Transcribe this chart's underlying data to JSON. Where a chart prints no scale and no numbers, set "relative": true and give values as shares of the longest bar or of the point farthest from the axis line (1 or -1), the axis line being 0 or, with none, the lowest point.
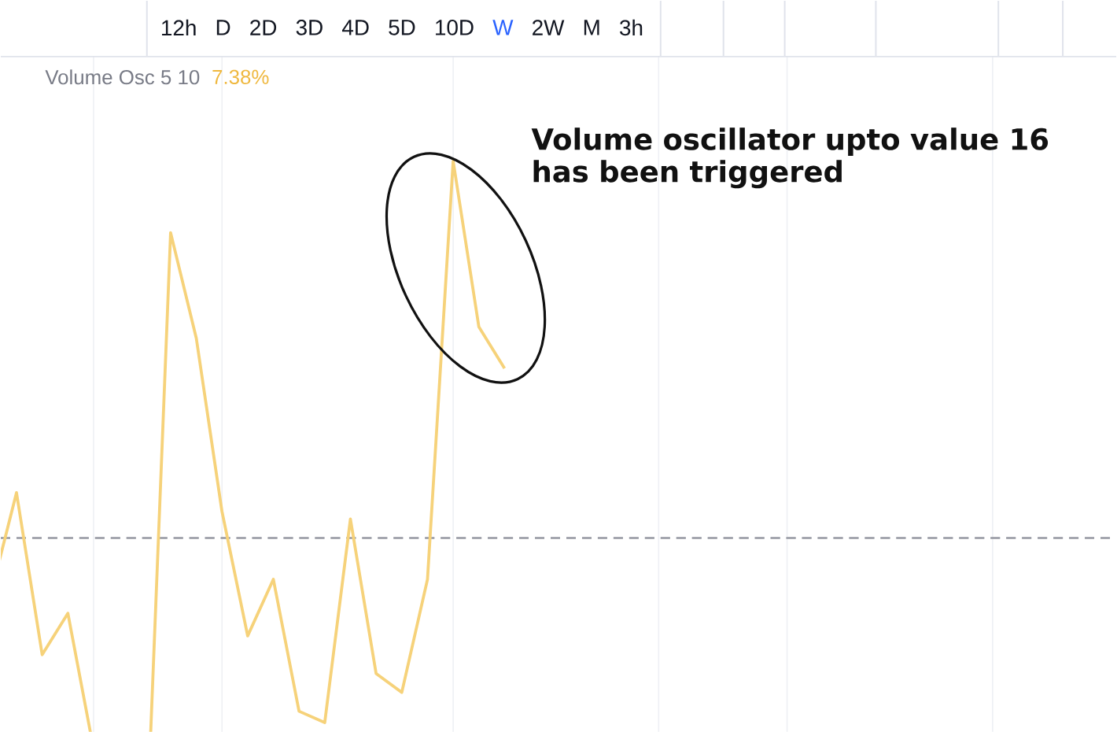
{
  "chart_data": {
    "type": "line",
    "title": "Volume Osc 5 10",
    "categories": [
      null,
      null,
      null,
      null,
      null,
      null,
      null,
      null,
      null,
      null,
      null,
      null,
      null,
      null,
      null,
      null,
      null,
      null,
      null,
      null,
      null
    ],
    "series": [
      {
        "color": "#f6d27a",
        "values": [
          -0.15,
          0.12,
          -0.31,
          -0.2,
          -0.56,
          null,
          -0.9,
          0.81,
          0.53,
          0.07,
          -0.26,
          -0.11,
          -0.46,
          -0.49,
          0.05,
          -0.36,
          -0.41,
          -0.11,
          1,
          0.56,
          0.45
        ]
      }
    ],
    "relative": true,
    "grid": true,
    "ref_lines": [
      {
        "axis": "y",
        "value": 0,
        "line_style": "dashed",
        "color": "#9598a1"
      }
    ],
    "annotations": [
      "12h",
      "D",
      "2D",
      "3D",
      "4D",
      "5D",
      "10D",
      "W",
      "2W",
      "M",
      "3h",
      "7.38%",
      "Volume oscillator upto value 16 has been triggered"
    ]
  }
}
